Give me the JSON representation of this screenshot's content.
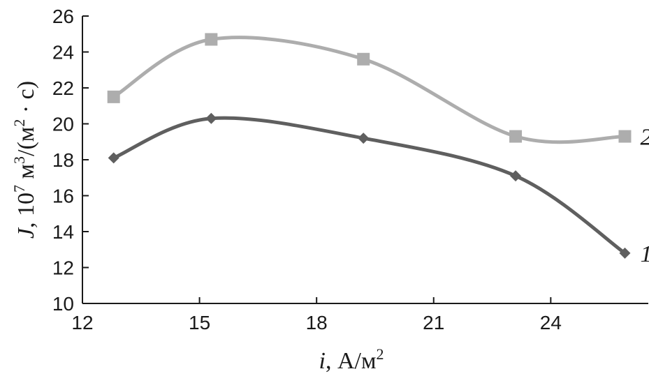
{
  "chart_data": {
    "type": "line",
    "title": "",
    "xlabel": {
      "var": "i",
      "rest": ", А/м",
      "sup": "2"
    },
    "ylabel": {
      "var": "J",
      "p1": ", 10",
      "s1": "7",
      "p2": " м",
      "s2": "3",
      "p3": "/(м",
      "s3": "2",
      "p4": " · с)"
    },
    "xlim": [
      12,
      26.5
    ],
    "ylim": [
      10,
      26
    ],
    "xticks": [
      12,
      15,
      18,
      21,
      24
    ],
    "yticks": [
      10,
      12,
      14,
      16,
      18,
      20,
      22,
      24,
      26
    ],
    "grid": false,
    "series": [
      {
        "label": "1",
        "marker": "diamond",
        "color": "#5f5f5f",
        "x": [
          12.8,
          15.3,
          19.2,
          23.1,
          25.9
        ],
        "y": [
          18.1,
          20.3,
          19.2,
          17.1,
          12.8
        ]
      },
      {
        "label": "2",
        "marker": "square",
        "color": "#adadad",
        "x": [
          12.8,
          15.3,
          19.2,
          23.1,
          25.9
        ],
        "y": [
          21.5,
          24.7,
          23.6,
          19.3,
          19.3
        ]
      }
    ]
  }
}
